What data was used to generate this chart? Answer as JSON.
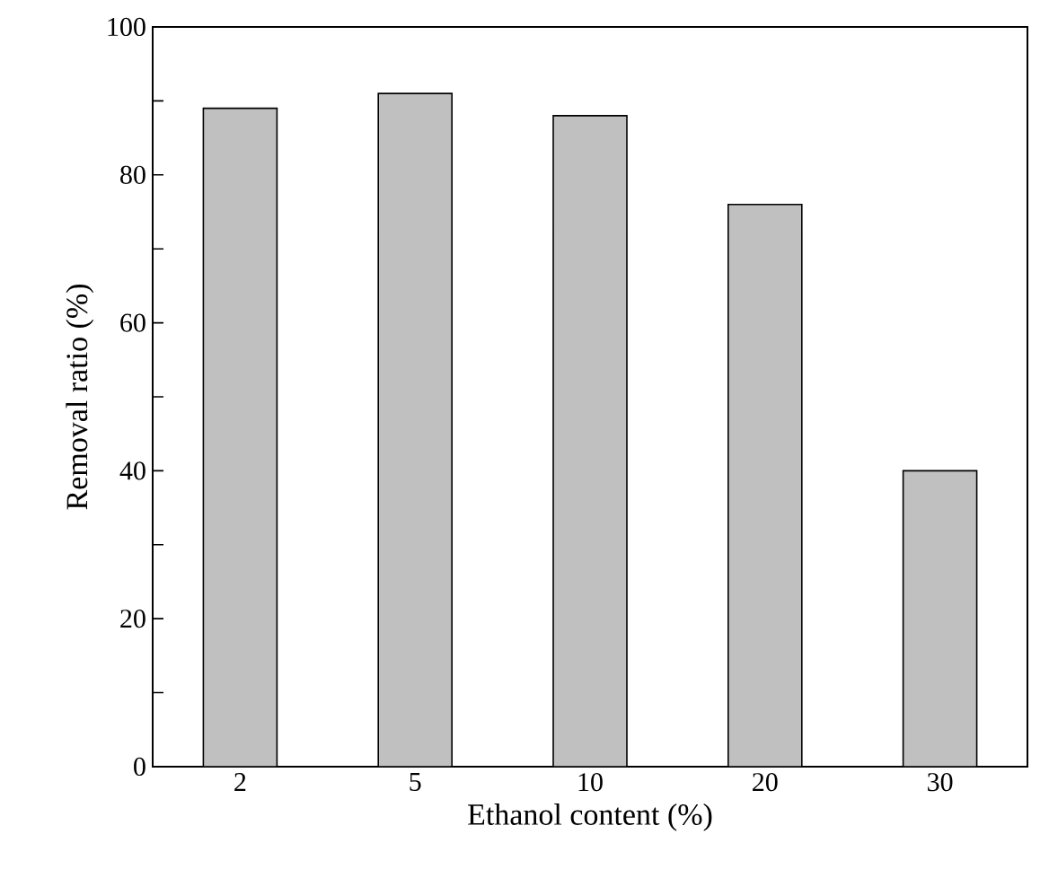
{
  "chart_data": {
    "type": "bar",
    "xlabel": "Ethanol content (%)",
    "ylabel": "Removal ratio (%)",
    "categories": [
      "2",
      "5",
      "10",
      "20",
      "30"
    ],
    "values": [
      89,
      91,
      88,
      76,
      40
    ],
    "color": "#c0c0c0",
    "ylim": [
      0,
      100
    ],
    "yticks": [
      0,
      {
        "value": 10,
        "label": null
      },
      20,
      {
        "value": 30,
        "label": null
      },
      40,
      {
        "value": 50,
        "label": null
      },
      60,
      {
        "value": 70,
        "label": null
      },
      80,
      {
        "value": 90,
        "label": null
      },
      100
    ],
    "grid": false
  }
}
